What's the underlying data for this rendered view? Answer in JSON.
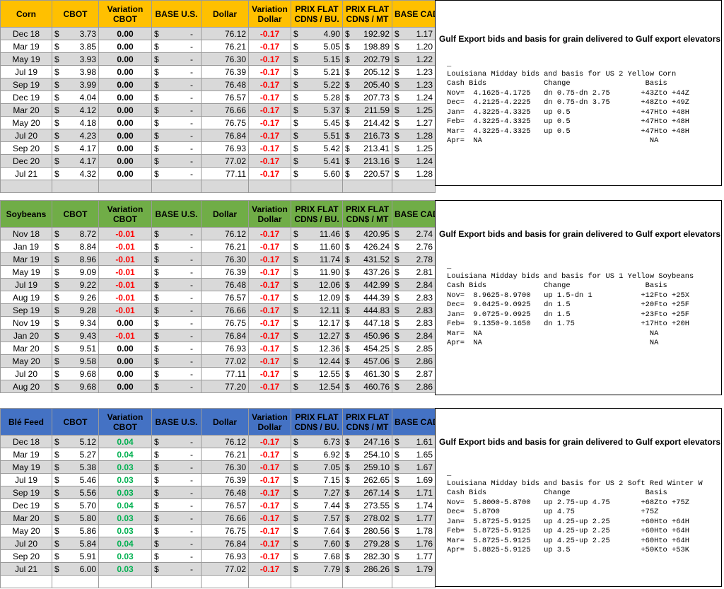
{
  "colors": {
    "corn_header": "#ffc000",
    "soy_header": "#70ad47",
    "wheat_header": "#4472c4",
    "negative": "#ff0000",
    "positive": "#00b050",
    "zero": "#000000"
  },
  "columns": [
    "CBOT",
    "Variation CBOT",
    "BASE U.S.",
    "Dollar",
    "Variation Dollar",
    "PRIX FLAT CDN$ / BU.",
    "PRIX FLAT CDN$ / MT",
    "BASE CAD"
  ],
  "headers": {
    "cbot": "CBOT",
    "var_cbot": [
      "Variation",
      "CBOT"
    ],
    "base_us": "BASE U.S.",
    "dollar": "Dollar",
    "var_dollar": [
      "Variation",
      "Dollar"
    ],
    "prix_bu": [
      "PRIX FLAT",
      "CDN$ / BU."
    ],
    "prix_mt": [
      "PRIX FLAT",
      "CDN$ / MT"
    ],
    "base_cad": "BASE CAD"
  },
  "currency_symbol": "$",
  "base_us_value": "-",
  "sections": [
    {
      "name": "Corn",
      "rows": [
        {
          "month": "Dec 18",
          "cbot": "3.73",
          "var": "0.00",
          "dollar": "76.12",
          "vard": "-0.17",
          "bu": "4.90",
          "mt": "192.92",
          "cad": "1.17"
        },
        {
          "month": "Mar 19",
          "cbot": "3.85",
          "var": "0.00",
          "dollar": "76.21",
          "vard": "-0.17",
          "bu": "5.05",
          "mt": "198.89",
          "cad": "1.20"
        },
        {
          "month": "May 19",
          "cbot": "3.93",
          "var": "0.00",
          "dollar": "76.30",
          "vard": "-0.17",
          "bu": "5.15",
          "mt": "202.79",
          "cad": "1.22"
        },
        {
          "month": "Jul 19",
          "cbot": "3.98",
          "var": "0.00",
          "dollar": "76.39",
          "vard": "-0.17",
          "bu": "5.21",
          "mt": "205.12",
          "cad": "1.23"
        },
        {
          "month": "Sep 19",
          "cbot": "3.99",
          "var": "0.00",
          "dollar": "76.48",
          "vard": "-0.17",
          "bu": "5.22",
          "mt": "205.40",
          "cad": "1.23"
        },
        {
          "month": "Dec 19",
          "cbot": "4.04",
          "var": "0.00",
          "dollar": "76.57",
          "vard": "-0.17",
          "bu": "5.28",
          "mt": "207.73",
          "cad": "1.24"
        },
        {
          "month": "Mar 20",
          "cbot": "4.12",
          "var": "0.00",
          "dollar": "76.66",
          "vard": "-0.17",
          "bu": "5.37",
          "mt": "211.59",
          "cad": "1.25"
        },
        {
          "month": "May 20",
          "cbot": "4.18",
          "var": "0.00",
          "dollar": "76.75",
          "vard": "-0.17",
          "bu": "5.45",
          "mt": "214.42",
          "cad": "1.27"
        },
        {
          "month": "Jul 20",
          "cbot": "4.23",
          "var": "0.00",
          "dollar": "76.84",
          "vard": "-0.17",
          "bu": "5.51",
          "mt": "216.73",
          "cad": "1.28"
        },
        {
          "month": "Sep 20",
          "cbot": "4.17",
          "var": "0.00",
          "dollar": "76.93",
          "vard": "-0.17",
          "bu": "5.42",
          "mt": "213.41",
          "cad": "1.25"
        },
        {
          "month": "Dec 20",
          "cbot": "4.17",
          "var": "0.00",
          "dollar": "77.02",
          "vard": "-0.17",
          "bu": "5.41",
          "mt": "213.16",
          "cad": "1.24"
        },
        {
          "month": "Jul 21",
          "cbot": "4.32",
          "var": "0.00",
          "dollar": "77.11",
          "vard": "-0.17",
          "bu": "5.60",
          "mt": "220.57",
          "cad": "1.28"
        }
      ],
      "panel": {
        "title": "Gulf Export bids and basis for grain delivered to Gulf export elevators",
        "lines": [
          "_",
          "Louisiana Midday bids and basis for US 2 Yellow Corn",
          "Cash Bids             Change                 Basis",
          "Nov=  4.1625-4.1725   dn 0.75-dn 2.75       +43Zto +44Z",
          "Dec=  4.2125-4.2225   dn 0.75-dn 3.75       +48Zto +49Z",
          "Jan=  4.3225-4.3325   up 0.5                +47Hto +48H",
          "Feb=  4.3225-4.3325   up 0.5                +47Hto +48H",
          "Mar=  4.3225-4.3325   up 0.5                +47Hto +48H",
          "Apr=  NA                                      NA"
        ]
      }
    },
    {
      "name": "Soybeans",
      "rows": [
        {
          "month": "Nov 18",
          "cbot": "8.72",
          "var": "-0.01",
          "dollar": "76.12",
          "vard": "-0.17",
          "bu": "11.46",
          "mt": "420.95",
          "cad": "2.74"
        },
        {
          "month": "Jan 19",
          "cbot": "8.84",
          "var": "-0.01",
          "dollar": "76.21",
          "vard": "-0.17",
          "bu": "11.60",
          "mt": "426.24",
          "cad": "2.76"
        },
        {
          "month": "Mar 19",
          "cbot": "8.96",
          "var": "-0.01",
          "dollar": "76.30",
          "vard": "-0.17",
          "bu": "11.74",
          "mt": "431.52",
          "cad": "2.78"
        },
        {
          "month": "May 19",
          "cbot": "9.09",
          "var": "-0.01",
          "dollar": "76.39",
          "vard": "-0.17",
          "bu": "11.90",
          "mt": "437.26",
          "cad": "2.81"
        },
        {
          "month": "Jul 19",
          "cbot": "9.22",
          "var": "-0.01",
          "dollar": "76.48",
          "vard": "-0.17",
          "bu": "12.06",
          "mt": "442.99",
          "cad": "2.84"
        },
        {
          "month": "Aug 19",
          "cbot": "9.26",
          "var": "-0.01",
          "dollar": "76.57",
          "vard": "-0.17",
          "bu": "12.09",
          "mt": "444.39",
          "cad": "2.83"
        },
        {
          "month": "Sep 19",
          "cbot": "9.28",
          "var": "-0.01",
          "dollar": "76.66",
          "vard": "-0.17",
          "bu": "12.11",
          "mt": "444.83",
          "cad": "2.83"
        },
        {
          "month": "Nov 19",
          "cbot": "9.34",
          "var": "0.00",
          "dollar": "76.75",
          "vard": "-0.17",
          "bu": "12.17",
          "mt": "447.18",
          "cad": "2.83"
        },
        {
          "month": "Jan 20",
          "cbot": "9.43",
          "var": "-0.01",
          "dollar": "76.84",
          "vard": "-0.17",
          "bu": "12.27",
          "mt": "450.96",
          "cad": "2.84"
        },
        {
          "month": "Mar 20",
          "cbot": "9.51",
          "var": "0.00",
          "dollar": "76.93",
          "vard": "-0.17",
          "bu": "12.36",
          "mt": "454.25",
          "cad": "2.85"
        },
        {
          "month": "May 20",
          "cbot": "9.58",
          "var": "0.00",
          "dollar": "77.02",
          "vard": "-0.17",
          "bu": "12.44",
          "mt": "457.06",
          "cad": "2.86"
        },
        {
          "month": "Jul 20",
          "cbot": "9.68",
          "var": "0.00",
          "dollar": "77.11",
          "vard": "-0.17",
          "bu": "12.55",
          "mt": "461.30",
          "cad": "2.87"
        },
        {
          "month": "Aug 20",
          "cbot": "9.68",
          "var": "0.00",
          "dollar": "77.20",
          "vard": "-0.17",
          "bu": "12.54",
          "mt": "460.76",
          "cad": "2.86"
        }
      ],
      "panel": {
        "title": "Gulf Export bids and basis for grain delivered to Gulf export elevators",
        "lines": [
          "_",
          "Louisiana Midday bids and basis for US 1 Yellow Soybeans",
          "Cash Bids             Change                 Basis",
          "Nov=  8.9625-8.9700   up 1.5-dn 1           +12Fto +25X",
          "Dec=  9.0425-9.0925   dn 1.5                +20Fto +25F",
          "Jan=  9.0725-9.0925   dn 1.5                +23Fto +25F",
          "Feb=  9.1350-9.1650   dn 1.75               +17Hto +20H",
          "Mar=  NA                                      NA",
          "Apr=  NA                                      NA"
        ]
      }
    },
    {
      "name": "Blé Feed",
      "rows": [
        {
          "month": "Dec 18",
          "cbot": "5.12",
          "var": "0.04",
          "dollar": "76.12",
          "vard": "-0.17",
          "bu": "6.73",
          "mt": "247.16",
          "cad": "1.61"
        },
        {
          "month": "Mar 19",
          "cbot": "5.27",
          "var": "0.04",
          "dollar": "76.21",
          "vard": "-0.17",
          "bu": "6.92",
          "mt": "254.10",
          "cad": "1.65"
        },
        {
          "month": "May 19",
          "cbot": "5.38",
          "var": "0.03",
          "dollar": "76.30",
          "vard": "-0.17",
          "bu": "7.05",
          "mt": "259.10",
          "cad": "1.67"
        },
        {
          "month": "Jul 19",
          "cbot": "5.46",
          "var": "0.03",
          "dollar": "76.39",
          "vard": "-0.17",
          "bu": "7.15",
          "mt": "262.65",
          "cad": "1.69"
        },
        {
          "month": "Sep 19",
          "cbot": "5.56",
          "var": "0.03",
          "dollar": "76.48",
          "vard": "-0.17",
          "bu": "7.27",
          "mt": "267.14",
          "cad": "1.71"
        },
        {
          "month": "Dec 19",
          "cbot": "5.70",
          "var": "0.04",
          "dollar": "76.57",
          "vard": "-0.17",
          "bu": "7.44",
          "mt": "273.55",
          "cad": "1.74"
        },
        {
          "month": "Mar 20",
          "cbot": "5.80",
          "var": "0.03",
          "dollar": "76.66",
          "vard": "-0.17",
          "bu": "7.57",
          "mt": "278.02",
          "cad": "1.77"
        },
        {
          "month": "May 20",
          "cbot": "5.86",
          "var": "0.03",
          "dollar": "76.75",
          "vard": "-0.17",
          "bu": "7.64",
          "mt": "280.56",
          "cad": "1.78"
        },
        {
          "month": "Jul 20",
          "cbot": "5.84",
          "var": "0.04",
          "dollar": "76.84",
          "vard": "-0.17",
          "bu": "7.60",
          "mt": "279.28",
          "cad": "1.76"
        },
        {
          "month": "Sep 20",
          "cbot": "5.91",
          "var": "0.03",
          "dollar": "76.93",
          "vard": "-0.17",
          "bu": "7.68",
          "mt": "282.30",
          "cad": "1.77"
        },
        {
          "month": "Jul 21",
          "cbot": "6.00",
          "var": "0.03",
          "dollar": "77.02",
          "vard": "-0.17",
          "bu": "7.79",
          "mt": "286.26",
          "cad": "1.79"
        }
      ],
      "panel": {
        "title": "Gulf Export bids and basis for grain delivered to Gulf export elevators",
        "lines": [
          "_",
          "Louisiana Midday bids and basis for US 2 Soft Red Winter W",
          "Cash Bids             Change                 Basis",
          "Nov=  5.8000-5.8700   up 2.75-up 4.75       +68Zto +75Z",
          "Dec=  5.8700          up 4.75               +75Z",
          "Jan=  5.8725-5.9125   up 4.25-up 2.25       +60Hto +64H",
          "Feb=  5.8725-5.9125   up 4.25-up 2.25       +60Hto +64H",
          "Mar=  5.8725-5.9125   up 4.25-up 2.25       +60Hto +64H",
          "Apr=  5.8825-5.9125   up 3.5                +50Kto +53K"
        ]
      }
    }
  ]
}
